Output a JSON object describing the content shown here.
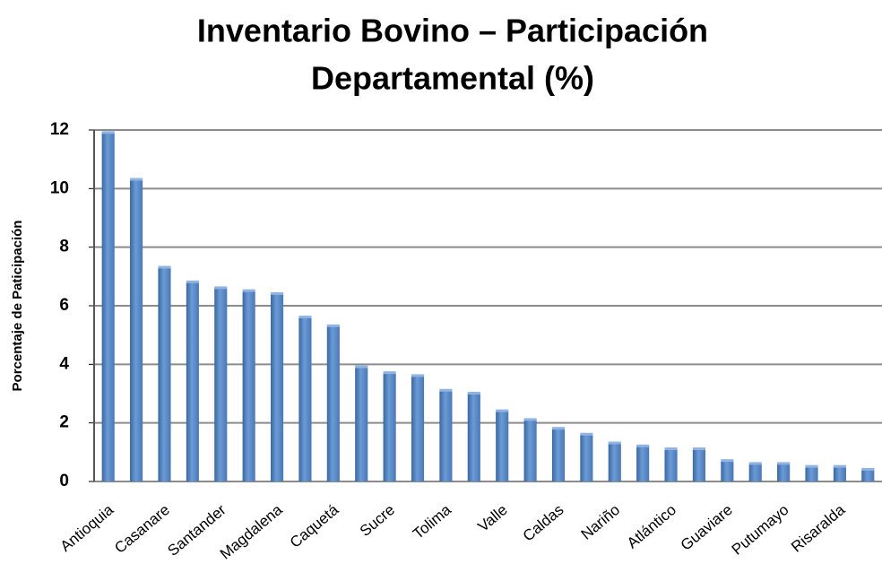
{
  "chart_data": {
    "type": "bar",
    "title": [
      "Inventario Bovino – Participación",
      "Departamental (%)"
    ],
    "y_label": "Porcentaje de Paticipación",
    "categories": [
      "Antioquia",
      null,
      "Casanare",
      null,
      "Santander",
      null,
      "Magdalena",
      null,
      "Caquetá",
      null,
      "Sucre",
      null,
      "Tolima",
      null,
      "Valle",
      null,
      "Caldas",
      null,
      "Nariño",
      null,
      "Atlántico",
      null,
      "Guaviare",
      null,
      "Putumayo",
      null,
      "Risaralda",
      null
    ],
    "values": [
      11.9,
      10.3,
      7.3,
      6.8,
      6.6,
      6.5,
      6.4,
      5.6,
      5.3,
      3.9,
      3.7,
      3.6,
      3.1,
      3.0,
      2.4,
      2.1,
      1.8,
      1.6,
      1.3,
      1.2,
      1.1,
      1.1,
      0.7,
      0.6,
      0.6,
      0.5,
      0.5,
      0.4
    ],
    "color": "#4f81bd",
    "ylim": [
      0,
      12
    ],
    "yticks": [
      0,
      2,
      4,
      6,
      8,
      10,
      12
    ],
    "grid": true
  }
}
